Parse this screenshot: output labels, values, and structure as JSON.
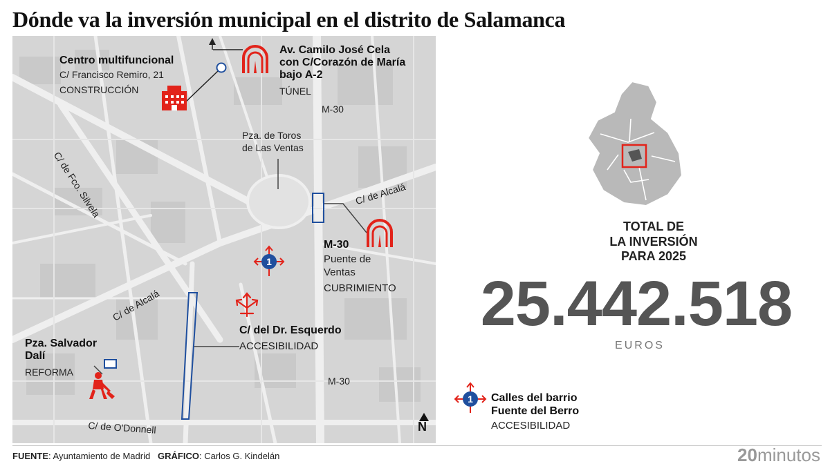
{
  "title": "Dónde va la inversión municipal en el distrito de Salamanca",
  "locations": {
    "centro": {
      "name": "Centro multifuncional",
      "address": "C/ Francisco Remiro, 21",
      "type": "CONSTRUCCIÓN"
    },
    "camilo": {
      "name_l1": "Av. Camilo José Cela",
      "name_l2": "con C/Corazón de María",
      "name_l3": "bajo A-2",
      "type": "TÚNEL"
    },
    "m30_ventas": {
      "name": "M-30",
      "detail_l1": "Puente de",
      "detail_l2": "Ventas",
      "type": "CUBRIMIENTO"
    },
    "esquerdo": {
      "name": "C/ del Dr. Esquerdo",
      "type": "ACCESIBILIDAD"
    },
    "dali": {
      "name_l1": "Pza. Salvador",
      "name_l2": "Dalí",
      "type": "REFORMA"
    }
  },
  "places": {
    "plaza_toros_l1": "Pza. de Toros",
    "plaza_toros_l2": "de Las Ventas"
  },
  "streets": {
    "silvela": "C/ de Fco. Silvela",
    "alcala_1": "C/ de Alcalá",
    "alcala_2": "C/ de Alcalá",
    "odonnell": "C/ de O'Donnell",
    "m30_top": "M-30",
    "m30_bottom": "M-30"
  },
  "north": "N",
  "total": {
    "label_l1": "TOTAL DE",
    "label_l2": "LA INVERSIÓN",
    "label_l3": "PARA 2025",
    "value": "25.442.518",
    "unit": "EUROS"
  },
  "legend": {
    "badge": "1",
    "name_l1": "Calles del barrio",
    "name_l2": "Fuente del Berro",
    "type": "ACCESIBILIDAD"
  },
  "footer": {
    "source_key": "FUENTE",
    "source_val": ": Ayuntamiento de Madrid",
    "graphic_key": "GRÁFICO",
    "graphic_val": ": Carlos G. Kindelán"
  },
  "brand": {
    "num": "20",
    "text": "minutos"
  },
  "colors": {
    "accent_red": "#e2231a",
    "accent_blue": "#1f4f9e",
    "map_bg": "#d7d7d7"
  },
  "icons": [
    "building-icon",
    "tunnel-icon",
    "accessibility-arrows-icon",
    "worker-digging-icon",
    "north-arrow-icon",
    "madrid-map-icon"
  ]
}
